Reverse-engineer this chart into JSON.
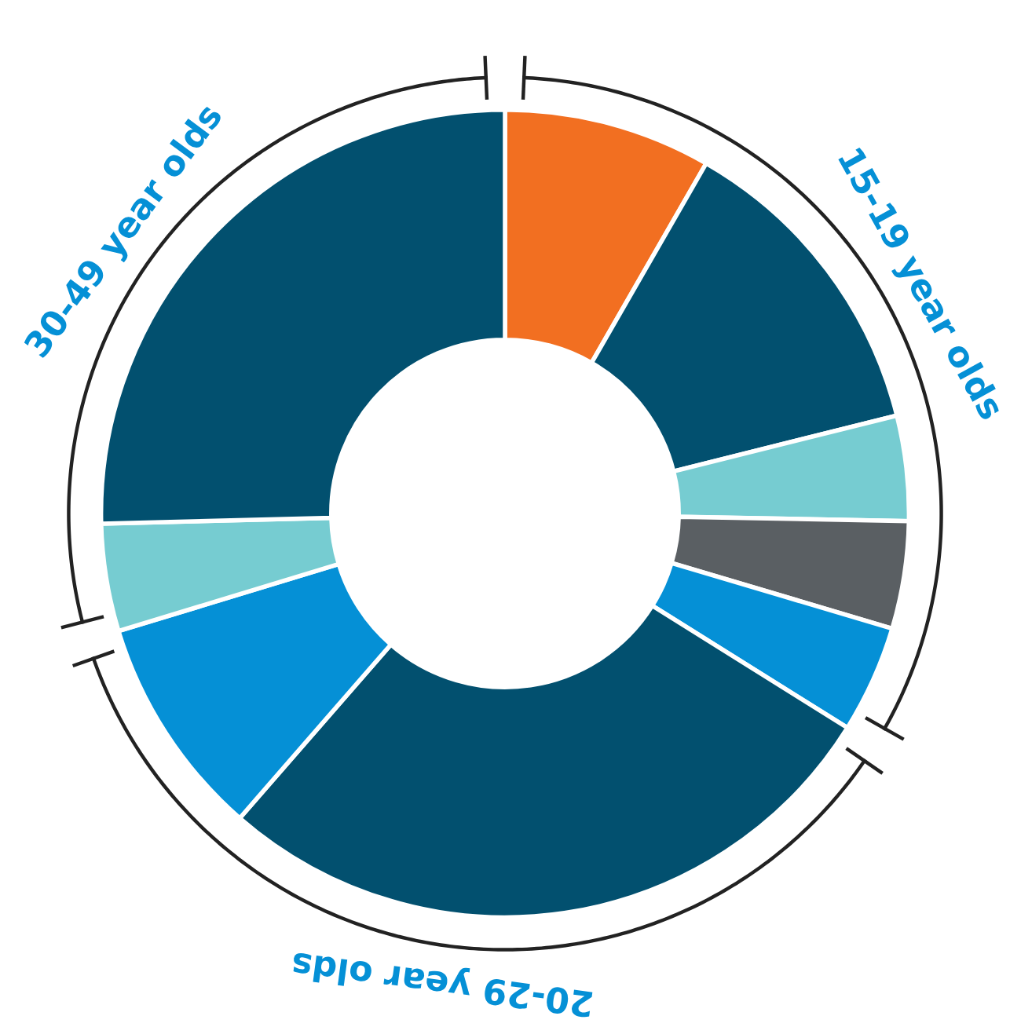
{
  "chart_data": {
    "type": "donut",
    "categories": [
      null,
      null,
      null,
      null,
      null,
      null,
      null,
      null,
      null
    ],
    "values": [
      8.3,
      12.8,
      4.2,
      4.3,
      4.3,
      27.5,
      8.9,
      4.3,
      25.4
    ],
    "colors": [
      "#f26f21",
      "#02506f",
      "#76ccd1",
      "#5a5f63",
      "#0590d6",
      "#02506f",
      "#0590d6",
      "#76ccd1",
      "#02506f"
    ],
    "annotations": [
      "15-19 year olds",
      "20-29 year olds",
      "30-49 year olds"
    ],
    "legend": false
  }
}
